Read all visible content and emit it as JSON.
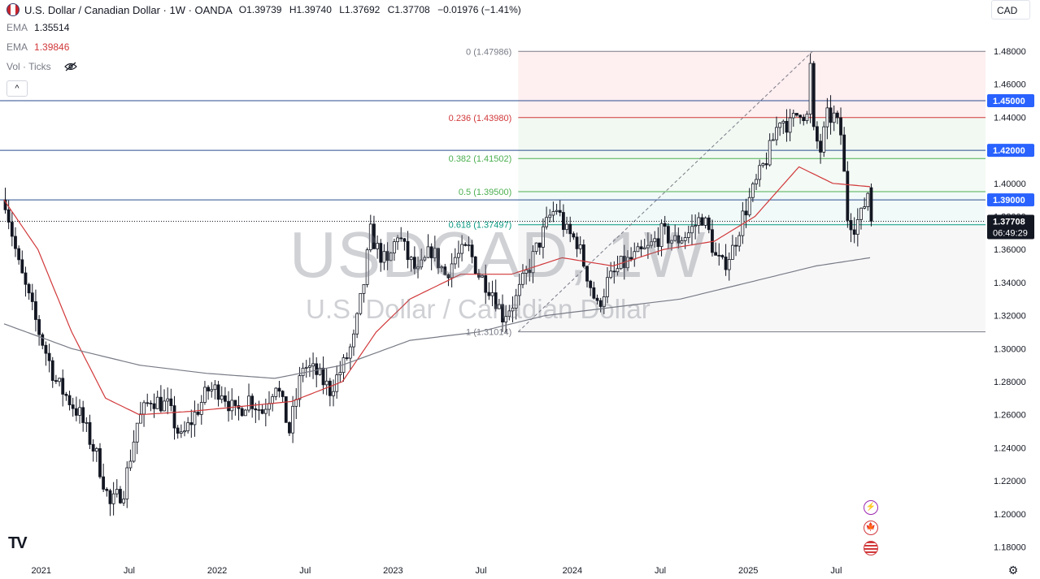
{
  "header": {
    "symbol_title": "U.S. Dollar / Canadian Dollar · 1W · OANDA",
    "ohlc": [
      {
        "key": "O",
        "value": "1.39739"
      },
      {
        "key": "H",
        "value": "1.39740"
      },
      {
        "key": "L",
        "value": "1.37692"
      },
      {
        "key": "C",
        "value": "1.37708"
      }
    ],
    "change": "−0.01976 (−1.41%)",
    "currency_button": "CAD"
  },
  "indicators": [
    {
      "label": "EMA",
      "value": "1.35514"
    },
    {
      "label": "EMA",
      "value": "1.39846"
    },
    {
      "label": "Vol · Ticks",
      "value": ""
    }
  ],
  "collapse_label": "^",
  "watermark": {
    "symbol": "USDCAD, 1W",
    "name": "U.S. Dollar / Canadian Dollar"
  },
  "brand_logo": "TV",
  "colors": {
    "up": "#131722",
    "down": "#131722",
    "ema_fast": "#d1383a",
    "ema_slow": "#787b86",
    "hline": "#2a4e8f",
    "price_label_bg": "#2962ff",
    "current_price_bg": "#131722"
  },
  "chart_data": {
    "type": "candlestick",
    "title": "U.S. Dollar / Canadian Dollar · 1W · OANDA",
    "ylim": [
      1.17,
      1.495
    ],
    "y_ticks": [
      "1.48000",
      "1.46000",
      "1.44000",
      "1.42000",
      "1.40000",
      "1.38000",
      "1.36000",
      "1.34000",
      "1.32000",
      "1.30000",
      "1.28000",
      "1.26000",
      "1.24000",
      "1.22000",
      "1.20000",
      "1.18000"
    ],
    "x_ticks": [
      "2021",
      "Jul",
      "2022",
      "Jul",
      "2023",
      "Jul",
      "2024",
      "Jul",
      "2025",
      "Jul"
    ],
    "horizontal_levels": [
      {
        "price": 1.45,
        "label": "1.45000"
      },
      {
        "price": 1.42,
        "label": "1.42000"
      },
      {
        "price": 1.39,
        "label": "1.39000"
      }
    ],
    "current_price": {
      "price": 1.37708,
      "label": "1.37708",
      "countdown": "06:49:29"
    },
    "fibonacci": {
      "from": 1.31014,
      "to": 1.47986,
      "start": "2023-07",
      "end": "2025-06",
      "levels": [
        {
          "ratio": "0",
          "price": 1.47986,
          "label": "0 (1.47986)",
          "color": "#787b86"
        },
        {
          "ratio": "0.236",
          "price": 1.4398,
          "label": "0.236 (1.43980)",
          "color": "#d1383a"
        },
        {
          "ratio": "0.382",
          "price": 1.41502,
          "label": "0.382 (1.41502)",
          "color": "#4caf50"
        },
        {
          "ratio": "0.5",
          "price": 1.395,
          "label": "0.5 (1.39500)",
          "color": "#4caf50"
        },
        {
          "ratio": "0.618",
          "price": 1.37497,
          "label": "0.618 (1.37497)",
          "color": "#089981"
        },
        {
          "ratio": "1",
          "price": 1.31014,
          "label": "1 (1.31014)",
          "color": "#787b86"
        }
      ]
    },
    "price_anchors": [
      [
        0,
        1.39
      ],
      [
        2,
        1.37
      ],
      [
        4,
        1.35
      ],
      [
        10,
        1.31
      ],
      [
        15,
        1.28
      ],
      [
        22,
        1.26
      ],
      [
        27,
        1.235
      ],
      [
        31,
        1.205
      ],
      [
        35,
        1.215
      ],
      [
        39,
        1.255
      ],
      [
        43,
        1.27
      ],
      [
        48,
        1.265
      ],
      [
        52,
        1.245
      ],
      [
        56,
        1.26
      ],
      [
        60,
        1.275
      ],
      [
        64,
        1.275
      ],
      [
        68,
        1.26
      ],
      [
        72,
        1.27
      ],
      [
        76,
        1.262
      ],
      [
        80,
        1.28
      ],
      [
        84,
        1.25
      ],
      [
        88,
        1.29
      ],
      [
        92,
        1.285
      ],
      [
        96,
        1.275
      ],
      [
        100,
        1.29
      ],
      [
        103,
        1.305
      ],
      [
        106,
        1.34
      ],
      [
        108,
        1.37
      ],
      [
        110,
        1.36
      ],
      [
        113,
        1.35
      ],
      [
        116,
        1.37
      ],
      [
        119,
        1.355
      ],
      [
        122,
        1.345
      ],
      [
        126,
        1.36
      ],
      [
        130,
        1.345
      ],
      [
        133,
        1.355
      ],
      [
        137,
        1.36
      ],
      [
        140,
        1.345
      ],
      [
        144,
        1.335
      ],
      [
        147,
        1.32
      ],
      [
        151,
        1.33
      ],
      [
        155,
        1.35
      ],
      [
        158,
        1.365
      ],
      [
        161,
        1.38
      ],
      [
        163,
        1.385
      ],
      [
        166,
        1.37
      ],
      [
        169,
        1.365
      ],
      [
        172,
        1.345
      ],
      [
        175,
        1.325
      ],
      [
        178,
        1.34
      ],
      [
        182,
        1.35
      ],
      [
        186,
        1.355
      ],
      [
        190,
        1.36
      ],
      [
        194,
        1.37
      ],
      [
        198,
        1.365
      ],
      [
        202,
        1.37
      ],
      [
        206,
        1.38
      ],
      [
        208,
        1.37
      ],
      [
        210,
        1.355
      ],
      [
        212,
        1.35
      ],
      [
        215,
        1.36
      ],
      [
        218,
        1.38
      ],
      [
        222,
        1.4
      ],
      [
        226,
        1.42
      ],
      [
        229,
        1.44
      ],
      [
        232,
        1.435
      ],
      [
        235,
        1.445
      ],
      [
        237,
        1.44
      ],
      [
        238,
        1.47
      ],
      [
        239,
        1.43
      ],
      [
        241,
        1.42
      ],
      [
        243,
        1.44
      ],
      [
        245,
        1.44
      ],
      [
        247,
        1.43
      ],
      [
        249,
        1.38
      ],
      [
        251,
        1.375
      ],
      [
        253,
        1.38
      ],
      [
        255,
        1.395
      ],
      [
        256,
        1.377
      ]
    ],
    "ema_fast_anchors": [
      [
        0,
        1.39
      ],
      [
        10,
        1.36
      ],
      [
        20,
        1.31
      ],
      [
        30,
        1.27
      ],
      [
        40,
        1.26
      ],
      [
        55,
        1.262
      ],
      [
        70,
        1.265
      ],
      [
        85,
        1.268
      ],
      [
        100,
        1.28
      ],
      [
        110,
        1.31
      ],
      [
        120,
        1.33
      ],
      [
        135,
        1.345
      ],
      [
        150,
        1.345
      ],
      [
        165,
        1.355
      ],
      [
        180,
        1.35
      ],
      [
        195,
        1.36
      ],
      [
        210,
        1.365
      ],
      [
        222,
        1.38
      ],
      [
        235,
        1.41
      ],
      [
        245,
        1.4
      ],
      [
        256,
        1.398
      ]
    ],
    "ema_slow_anchors": [
      [
        0,
        1.315
      ],
      [
        20,
        1.3
      ],
      [
        40,
        1.29
      ],
      [
        60,
        1.285
      ],
      [
        80,
        1.282
      ],
      [
        100,
        1.29
      ],
      [
        120,
        1.305
      ],
      [
        140,
        1.31
      ],
      [
        160,
        1.32
      ],
      [
        180,
        1.325
      ],
      [
        200,
        1.33
      ],
      [
        220,
        1.34
      ],
      [
        240,
        1.35
      ],
      [
        256,
        1.355
      ]
    ],
    "candle_count": 257
  }
}
